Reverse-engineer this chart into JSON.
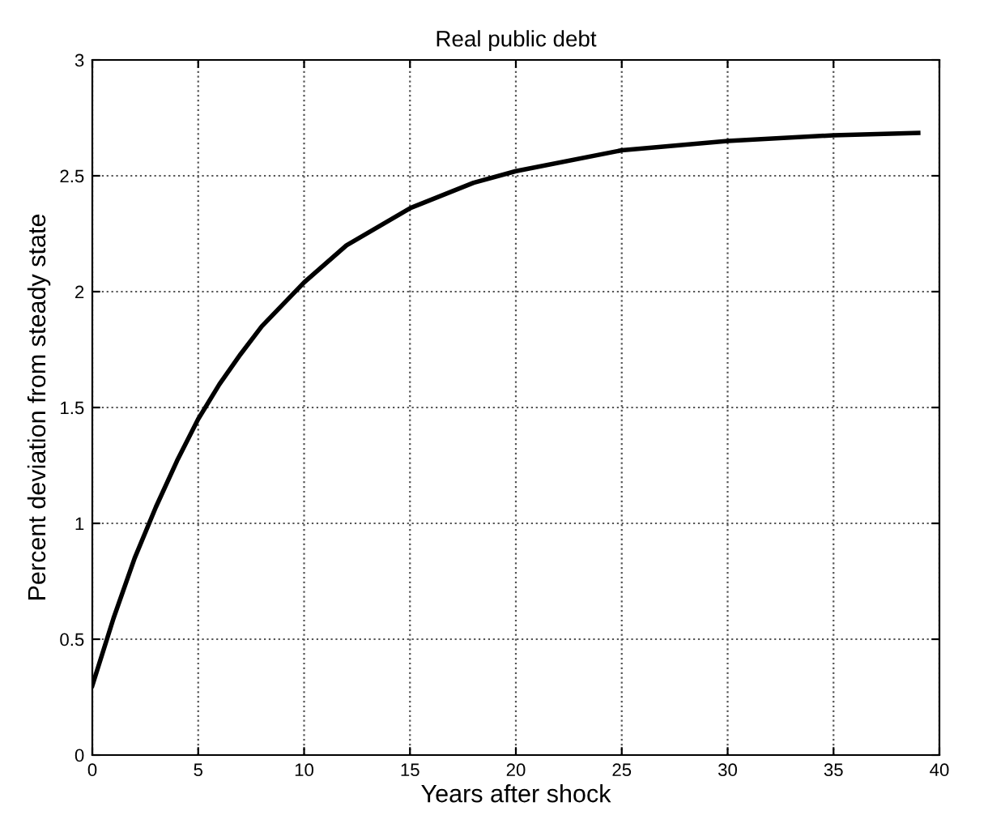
{
  "chart_data": {
    "type": "line",
    "title": "Real public debt",
    "xlabel": "Years after shock",
    "ylabel": "Percent deviation from steady state",
    "x": [
      0,
      1,
      2,
      3,
      4,
      5,
      6,
      7,
      8,
      10,
      12,
      15,
      18,
      20,
      25,
      30,
      35,
      39
    ],
    "series": [
      {
        "color": "#000000",
        "values": [
          0.3,
          0.59,
          0.85,
          1.07,
          1.27,
          1.45,
          1.6,
          1.73,
          1.85,
          2.04,
          2.2,
          2.36,
          2.47,
          2.52,
          2.61,
          2.65,
          2.675,
          2.685
        ]
      }
    ],
    "xlim": [
      0,
      40
    ],
    "ylim": [
      0,
      3
    ],
    "xticks": [
      0,
      5,
      10,
      15,
      20,
      25,
      30,
      35,
      40
    ],
    "yticks": [
      0,
      0.5,
      1,
      1.5,
      2,
      2.5,
      3
    ],
    "grid": true,
    "line_style": "solid",
    "marker": "none",
    "legend": false
  }
}
